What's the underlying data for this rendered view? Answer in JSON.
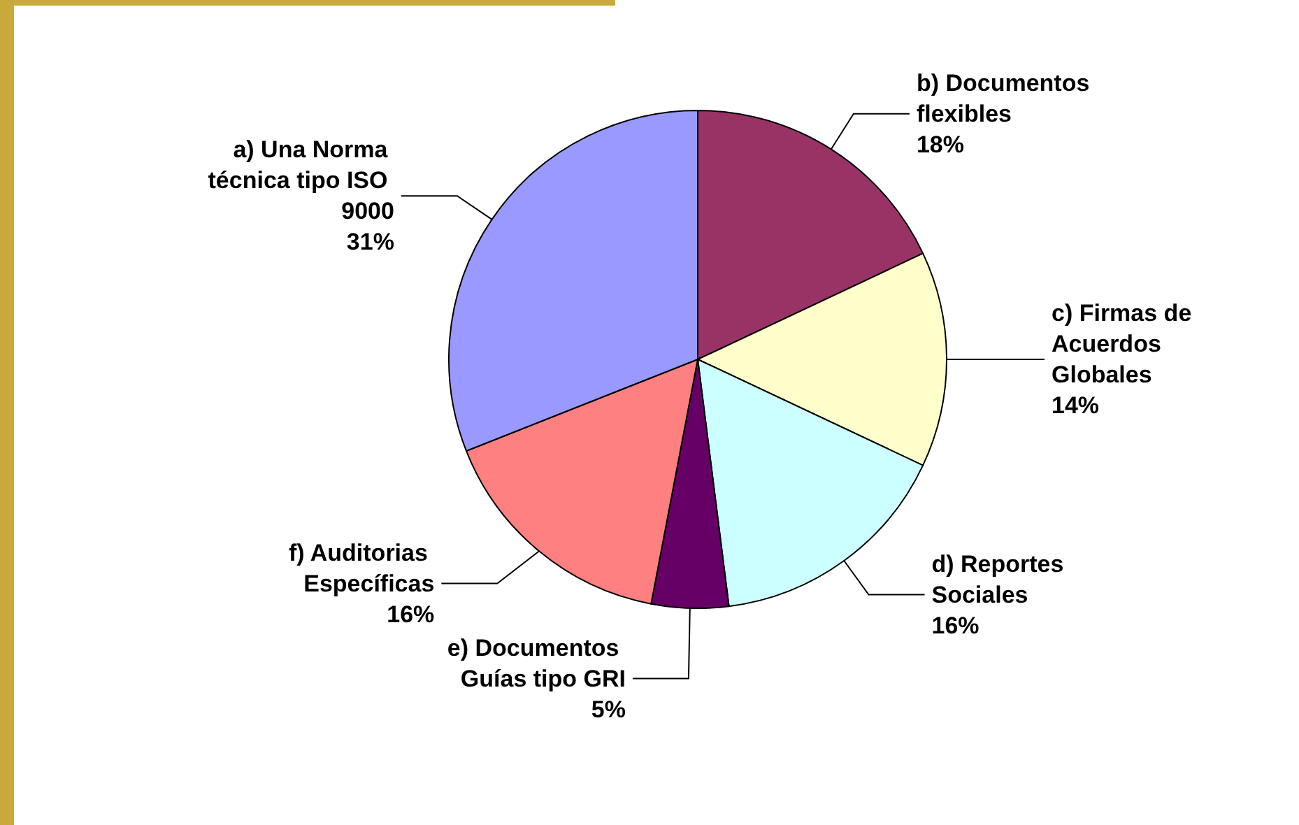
{
  "chart_data": {
    "type": "pie",
    "categories": [
      "b) Documentos flexibles",
      "c) Firmas de Acuerdos Globales",
      "d) Reportes Sociales",
      "e) Documentos Guías tipo GRI",
      "f) Auditorias Específicas",
      "a) Una Norma técnica tipo ISO 9000"
    ],
    "values": [
      18,
      14,
      16,
      5,
      16,
      31
    ],
    "colors": [
      "#993366",
      "#ffffcc",
      "#ccffff",
      "#660066",
      "#ff8080",
      "#9999ff"
    ],
    "value_labels": [
      "18%",
      "14%",
      "16%",
      "5%",
      "16%",
      "31%"
    ],
    "legend": false
  }
}
